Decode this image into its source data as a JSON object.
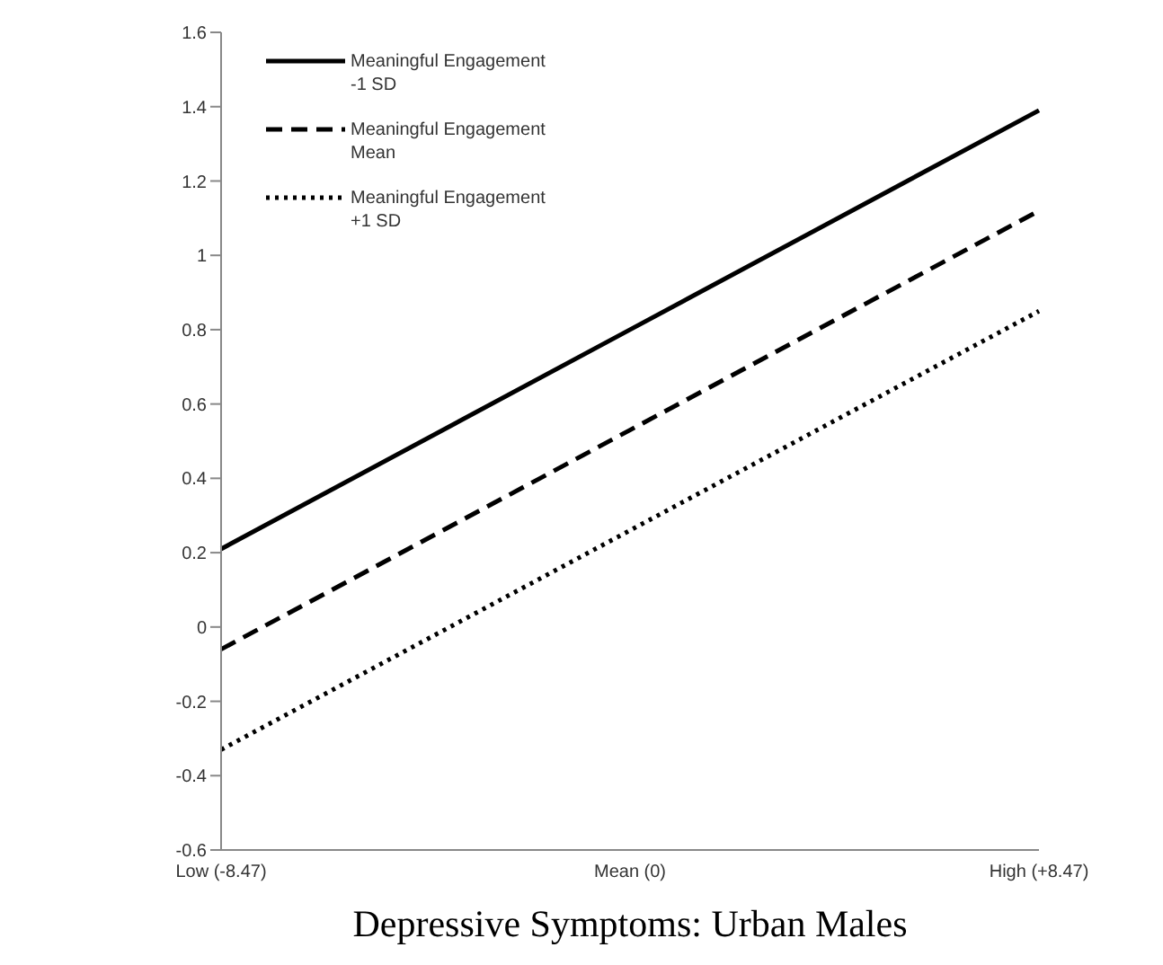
{
  "chart_data": {
    "type": "line",
    "xlabel": "Depressive Symptoms: Urban Males",
    "categories": [
      "Low (-8.47)",
      "Mean (0)",
      "High (+8.47)"
    ],
    "series": [
      {
        "name": "Meaningful Engagement -1 SD",
        "color": "#000000",
        "line_style": "solid",
        "values": [
          0.21,
          0.8,
          1.39
        ]
      },
      {
        "name": "Meaningful Engagement Mean",
        "color": "#000000",
        "line_style": "dashed",
        "values": [
          -0.06,
          0.53,
          1.12
        ]
      },
      {
        "name": "Meaningful Engagement +1 SD",
        "color": "#000000",
        "line_style": "dotted",
        "values": [
          -0.33,
          0.26,
          0.85
        ]
      }
    ],
    "ylim": [
      -0.6,
      1.6
    ],
    "yticks": [
      -0.6,
      -0.4,
      -0.2,
      0,
      0.2,
      0.4,
      0.6,
      0.8,
      1,
      1.2,
      1.4,
      1.6
    ],
    "grid": false,
    "legend": "top left",
    "marker": "none"
  }
}
